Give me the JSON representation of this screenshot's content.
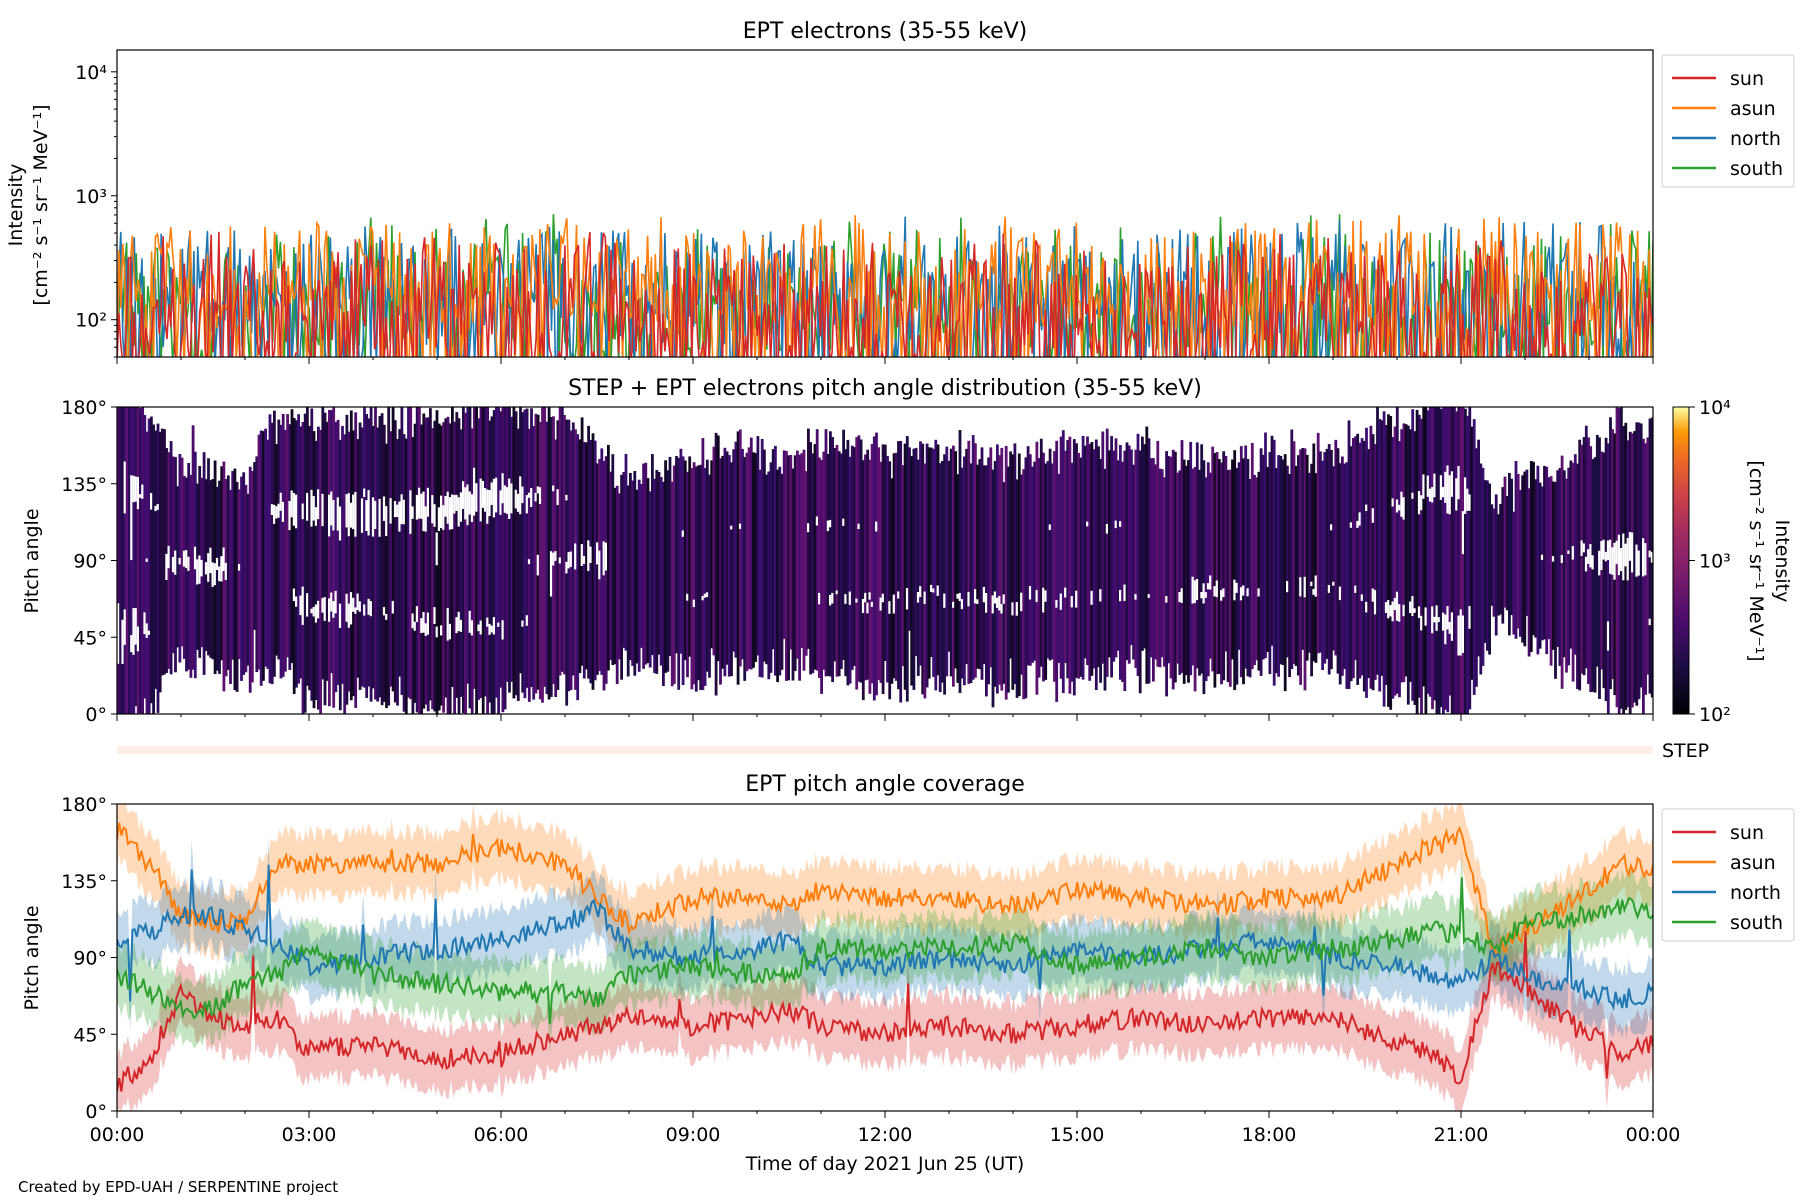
{
  "footer": "Created by EPD-UAH / SERPENTINE project",
  "colors": {
    "sun": "#d62728",
    "asun": "#ff7f0e",
    "north": "#1f77b4",
    "south": "#2ca02c",
    "step": "#fdeee6"
  },
  "chart_data": [
    {
      "type": "line",
      "title": "EPT electrons (35-55 keV)",
      "ylabel_line1": "Intensity",
      "ylabel_line2": "[cm⁻² s⁻¹ sr⁻¹ MeV⁻¹]",
      "yscale": "log",
      "ylim": [
        50,
        15000
      ],
      "yticks": [
        "10⁴",
        "10³",
        "10²"
      ],
      "legend": "outside-right-top",
      "series": [
        {
          "name": "sun",
          "color": "#d62728",
          "typical": [
            50,
            350
          ],
          "peak": 600
        },
        {
          "name": "asun",
          "color": "#ff7f0e",
          "typical": [
            80,
            500
          ],
          "peak": 650
        },
        {
          "name": "north",
          "color": "#1f77b4",
          "typical": [
            60,
            450
          ],
          "peak": 620
        },
        {
          "name": "south",
          "color": "#2ca02c",
          "typical": [
            55,
            400
          ],
          "peak": 720
        }
      ]
    },
    {
      "type": "heatmap",
      "title": "STEP + EPT electrons pitch angle distribution (35-55 keV)",
      "ylabel": "Pitch angle",
      "y_ticks": [
        "180°",
        "135°",
        "90°",
        "45°",
        "0°"
      ],
      "colorbar": {
        "label_line1": "Intensity",
        "label_line2": "[cm⁻² s⁻¹ sr⁻¹ MeV⁻¹]",
        "ticks": [
          "10⁴",
          "10³",
          "10²"
        ],
        "scale": "log",
        "range": [
          100,
          10000
        ],
        "colormap": "inferno"
      },
      "step_label": "STEP"
    },
    {
      "type": "line",
      "title": "EPT pitch angle coverage",
      "ylabel": "Pitch angle",
      "ylim": [
        0,
        180
      ],
      "y_ticks": [
        "180°",
        "135°",
        "90°",
        "45°",
        "0°"
      ],
      "xlabel": "Time of day 2021 Jun 25 (UT)",
      "x_ticks": [
        "00:00",
        "03:00",
        "06:00",
        "09:00",
        "12:00",
        "15:00",
        "18:00",
        "21:00",
        "00:00"
      ],
      "legend": "outside-right-top",
      "series": [
        {
          "name": "sun",
          "color": "#d62728",
          "x_hours": [
            0,
            0.5,
            1,
            1.5,
            2,
            2.5,
            3,
            4,
            5,
            6,
            7,
            7.5,
            8,
            9,
            10,
            10.5,
            11,
            12,
            13,
            14,
            15,
            16,
            17,
            18,
            19,
            20,
            20.5,
            21,
            21.5,
            22,
            23,
            23.5,
            24
          ],
          "values": [
            15,
            30,
            70,
            55,
            50,
            55,
            35,
            40,
            30,
            35,
            45,
            50,
            55,
            50,
            55,
            60,
            50,
            45,
            50,
            45,
            50,
            55,
            50,
            55,
            55,
            40,
            35,
            20,
            85,
            70,
            45,
            35,
            40
          ]
        },
        {
          "name": "asun",
          "color": "#ff7f0e",
          "x_hours": [
            0,
            0.5,
            1,
            1.5,
            2,
            2.5,
            3,
            4,
            5,
            6,
            7,
            7.5,
            8,
            9,
            10,
            10.5,
            11,
            12,
            13,
            14,
            15,
            16,
            17,
            18,
            19,
            20,
            20.5,
            21,
            21.5,
            22,
            23,
            23.5,
            24
          ],
          "values": [
            165,
            145,
            115,
            110,
            110,
            145,
            145,
            145,
            145,
            155,
            145,
            125,
            110,
            125,
            125,
            120,
            130,
            125,
            125,
            120,
            130,
            125,
            120,
            125,
            125,
            145,
            155,
            160,
            95,
            105,
            130,
            145,
            140
          ]
        },
        {
          "name": "north",
          "color": "#1f77b4",
          "x_hours": [
            0,
            0.5,
            1,
            1.5,
            2,
            2.5,
            3,
            4,
            5,
            6,
            7,
            7.5,
            8,
            9,
            10,
            10.5,
            11,
            12,
            13,
            14,
            15,
            16,
            17,
            18,
            19,
            20,
            20.5,
            21,
            21.5,
            22,
            23,
            23.5,
            24
          ],
          "values": [
            100,
            105,
            115,
            115,
            105,
            100,
            85,
            90,
            95,
            100,
            110,
            120,
            95,
            90,
            95,
            100,
            85,
            85,
            90,
            85,
            95,
            90,
            95,
            100,
            90,
            85,
            80,
            75,
            90,
            80,
            70,
            65,
            70
          ]
        },
        {
          "name": "south",
          "color": "#2ca02c",
          "x_hours": [
            0,
            0.5,
            1,
            1.5,
            2,
            2.5,
            3,
            4,
            5,
            6,
            7,
            7.5,
            8,
            9,
            10,
            10.5,
            11,
            12,
            13,
            14,
            15,
            16,
            17,
            18,
            19,
            20,
            20.5,
            21,
            21.5,
            22,
            23,
            23.5,
            24
          ],
          "values": [
            80,
            70,
            60,
            60,
            75,
            80,
            95,
            80,
            75,
            70,
            70,
            65,
            80,
            85,
            80,
            80,
            95,
            95,
            95,
            100,
            85,
            90,
            95,
            90,
            95,
            100,
            105,
            105,
            95,
            110,
            115,
            120,
            115
          ]
        }
      ]
    }
  ]
}
